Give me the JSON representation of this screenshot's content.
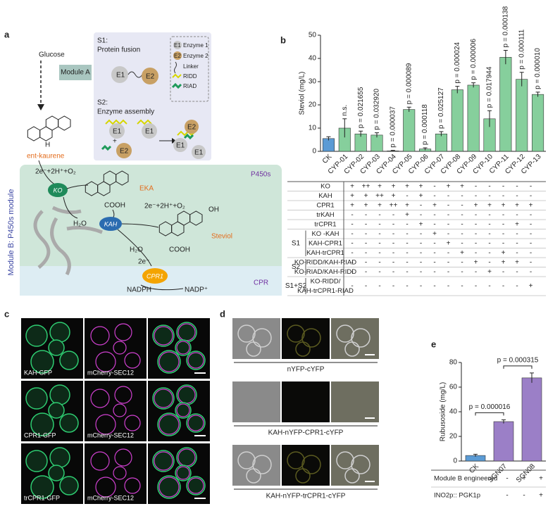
{
  "panel_labels": [
    "a",
    "b",
    "c",
    "d",
    "e"
  ],
  "diagram": {
    "glucose": "Glucose",
    "module_a": "Module A",
    "ent_kaurene": "ent-kaurene",
    "h": "H",
    "s1_title": "S1:",
    "s1_text": "Protein fusion",
    "s2_title": "S2:",
    "s2_text": "Enzyme assembly",
    "e1": "E1",
    "e2": "E2",
    "plus": "+",
    "legend": [
      {
        "symbol": "E1",
        "text": "Enzyme 1"
      },
      {
        "symbol": "E2",
        "text": "Enzyme 2"
      },
      {
        "text": "Linker"
      },
      {
        "text": "RIDD"
      },
      {
        "text": "RIAD"
      }
    ],
    "reaction": "2e⁻+2H⁺+O₂",
    "ko": "KO",
    "eka": "EKA",
    "cooh": "COOH",
    "h2o": "H₂O",
    "kah": "KAH",
    "oh": "OH",
    "steviol": "Steviol",
    "p450s": "P450s",
    "module_b": "Module B: P450s module",
    "cpr": "CPR",
    "cpr1": "CPR1",
    "electron": "2e⁻",
    "nadph": "NADPH",
    "nadp": "NADP⁺"
  },
  "chart_data": [
    {
      "type": "bar",
      "ylabel": "Steviol (mg/L)",
      "categories": [
        "CK",
        "CYP-01",
        "CYP-02",
        "CYP-03",
        "CYP-04",
        "CYP-05",
        "CYP-06",
        "CYP-07",
        "CYP-08",
        "CYP-09",
        "CYP-10",
        "CYP-11",
        "CYP-12",
        "CYP-13"
      ],
      "values": [
        5.5,
        10,
        7.5,
        7,
        0.2,
        18,
        1,
        7.5,
        26.5,
        28.5,
        14,
        40.5,
        31,
        24.5
      ],
      "errors": [
        0.8,
        4,
        1.2,
        1,
        0.2,
        1,
        0.5,
        1,
        1.5,
        1,
        3.5,
        3,
        3,
        1
      ],
      "colors": [
        "#5b9bd5",
        "#86cf9c",
        "#86cf9c",
        "#86cf9c",
        "#86cf9c",
        "#86cf9c",
        "#86cf9c",
        "#86cf9c",
        "#86cf9c",
        "#86cf9c",
        "#86cf9c",
        "#86cf9c",
        "#86cf9c",
        "#86cf9c"
      ],
      "annotations": [
        null,
        "n.s.",
        "p = 0.021655",
        "p = 0.032920",
        "p = 0.000037",
        "p = 0.000089",
        "p = 0.000118",
        "p = 0.025127",
        "p = 0.000024",
        "p = 0.000006",
        "p = 0.017944",
        "p = 0.000138",
        "p = 0.000111",
        "p = 0.000010"
      ],
      "ylim": [
        0,
        50
      ],
      "yticks": [
        0,
        10,
        20,
        30,
        40,
        50
      ]
    },
    {
      "type": "bar",
      "ylabel": "Rubusoside (mg/L)",
      "categories": [
        "CK",
        "SGN07",
        "SGN08"
      ],
      "values": [
        4.5,
        32,
        67.5
      ],
      "errors": [
        1,
        1.5,
        4
      ],
      "colors": [
        "#5b9bd5",
        "#9b7fc7",
        "#9b7fc7"
      ],
      "annotations": [
        "p = 0.000016",
        "p = 0.000315"
      ],
      "ylim": [
        0,
        80
      ],
      "yticks": [
        0,
        20,
        40,
        60,
        80
      ]
    }
  ],
  "table_b": {
    "rows": [
      {
        "label": "KO",
        "marks": [
          "+",
          "++",
          "+",
          "+",
          "+",
          "+",
          "-",
          "+",
          "+",
          "-",
          "-",
          "-",
          "-",
          "-"
        ]
      },
      {
        "label": "KAH",
        "marks": [
          "+",
          "+",
          "++",
          "+",
          "-",
          "+",
          "-",
          "-",
          "-",
          "-",
          "-",
          "-",
          "-",
          "-"
        ]
      },
      {
        "label": "CPR1",
        "marks": [
          "+",
          "+",
          "+",
          "++",
          "+",
          "-",
          "+",
          "-",
          "-",
          "+",
          "+",
          "+",
          "+",
          "+"
        ]
      },
      {
        "label": "trKAH",
        "marks": [
          "-",
          "-",
          "-",
          "-",
          "+",
          "-",
          "-",
          "-",
          "-",
          "-",
          "-",
          "-",
          "-",
          "-"
        ]
      },
      {
        "label": "trCPR1",
        "marks": [
          "-",
          "-",
          "-",
          "-",
          "-",
          "+",
          "-",
          "-",
          "-",
          "-",
          "-",
          "-",
          "+",
          "-"
        ]
      }
    ],
    "groups": [
      {
        "label": "S1",
        "rows": [
          {
            "label": "KO -KAH",
            "marks": [
              "-",
              "-",
              "-",
              "-",
              "-",
              "-",
              "+",
              "-",
              "-",
              "-",
              "-",
              "-",
              "-",
              "-"
            ]
          },
          {
            "label": "KAH-CPR1",
            "marks": [
              "-",
              "-",
              "-",
              "-",
              "-",
              "-",
              "-",
              "+",
              "-",
              "-",
              "-",
              "-",
              "-",
              "-"
            ]
          },
          {
            "label": "KAH-trCPR1",
            "marks": [
              "-",
              "-",
              "-",
              "-",
              "-",
              "-",
              "-",
              "-",
              "+",
              "-",
              "-",
              "+",
              "-",
              "-"
            ]
          }
        ]
      },
      {
        "label": "S2",
        "rows": [
          {
            "label": "KO-RIDD/KAH-RIAD",
            "marks": [
              "-",
              "-",
              "-",
              "-",
              "-",
              "-",
              "-",
              "-",
              "-",
              "+",
              "-",
              "+",
              "+",
              "-"
            ]
          },
          {
            "label": "KO-RIAD/KAH-RIDD",
            "marks": [
              "-",
              "-",
              "-",
              "-",
              "-",
              "-",
              "-",
              "-",
              "-",
              "-",
              "+",
              "-",
              "-",
              "-"
            ]
          }
        ]
      },
      {
        "label": "S1+S2",
        "rows": [
          {
            "label": [
              "KO-RIDD/",
              "KAH-trCPR1-RIAD"
            ],
            "marks": [
              "-",
              "-",
              "-",
              "-",
              "-",
              "-",
              "-",
              "-",
              "-",
              "-",
              "-",
              "-",
              "-",
              "+"
            ]
          }
        ]
      }
    ]
  },
  "table_e": {
    "rows": [
      {
        "label": "Module B engineered",
        "marks": [
          "-",
          "+",
          "+"
        ]
      },
      {
        "label": "INO2p:: PGK1p",
        "marks": [
          "-",
          "-",
          "+"
        ]
      }
    ]
  },
  "micro_c": {
    "labels": [
      [
        "KAH-GFP",
        "mCherry-SEC12"
      ],
      [
        "CPR1-GFP",
        "mCherry-SEC12"
      ],
      [
        "trCPR1-GFP",
        "mCherry-SEC12"
      ]
    ]
  },
  "micro_d": {
    "labels": [
      "nYFP-cYFP",
      "KAH-nYFP-CPR1-cYFP",
      "KAH-nYFP-trCPR1-cYFP"
    ]
  }
}
